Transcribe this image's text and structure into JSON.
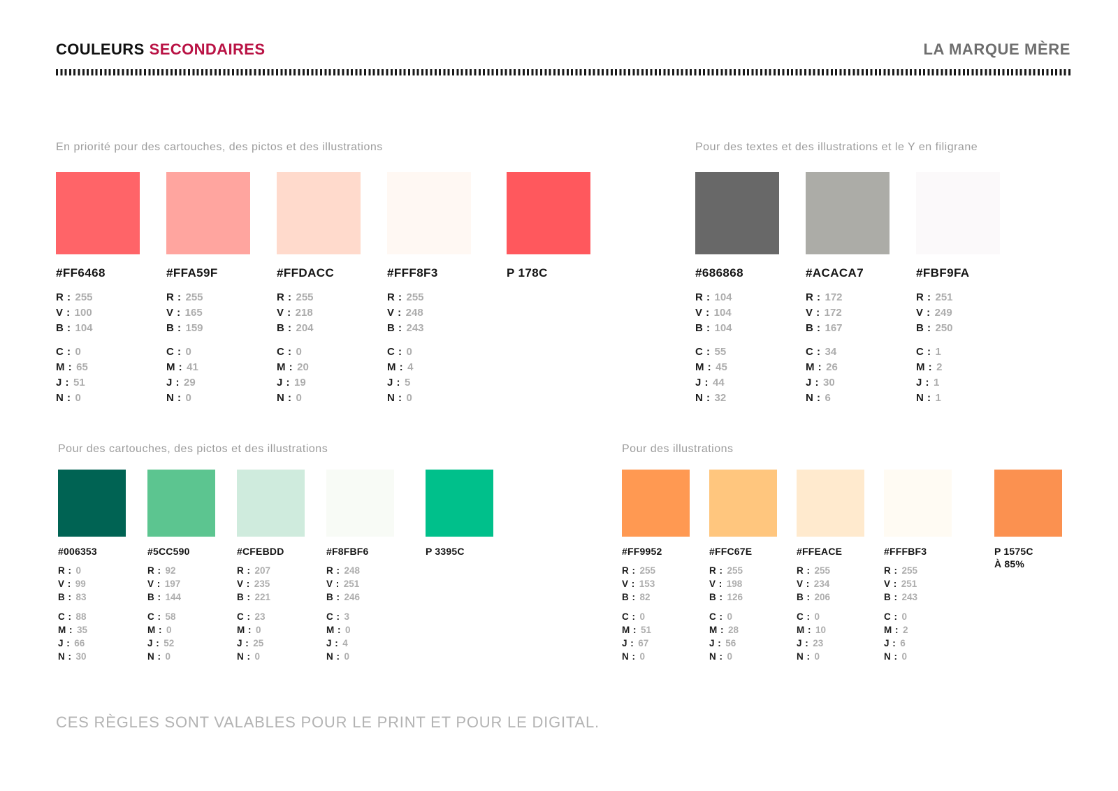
{
  "header": {
    "title_black": "COULEURS",
    "title_accent": "SECONDAIRES",
    "accent_color": "#B91244",
    "brand": "LA MARQUE MÈRE"
  },
  "labels": {
    "rgb": [
      "R :",
      "V :",
      "B :"
    ],
    "cmyk": [
      "C :",
      "M :",
      "J :",
      "N :"
    ]
  },
  "groups": [
    {
      "label": "En priorité pour des cartouches, des pictos et des illustrations",
      "swatches": [
        {
          "name": "#FF6468",
          "color": "#FF6468",
          "rgb": [
            255,
            100,
            104
          ],
          "cmyk": [
            0,
            65,
            51,
            0
          ]
        },
        {
          "name": "#FFA59F",
          "color": "#FFA59F",
          "rgb": [
            255,
            165,
            159
          ],
          "cmyk": [
            0,
            41,
            29,
            0
          ]
        },
        {
          "name": "#FFDACC",
          "color": "#FFDACC",
          "rgb": [
            255,
            218,
            204
          ],
          "cmyk": [
            0,
            20,
            19,
            0
          ]
        },
        {
          "name": "#FFF8F3",
          "color": "#FFF8F3",
          "rgb": [
            255,
            248,
            243
          ],
          "cmyk": [
            0,
            4,
            5,
            0
          ]
        },
        {
          "name": "P 178C",
          "color": "#FF585D"
        }
      ]
    },
    {
      "label": "Pour des textes et des illustrations et le Y en filigrane",
      "swatches": [
        {
          "name": "#686868",
          "color": "#686868",
          "rgb": [
            104,
            104,
            104
          ],
          "cmyk": [
            55,
            45,
            44,
            32
          ]
        },
        {
          "name": "#ACACA7",
          "color": "#ACACA7",
          "rgb": [
            172,
            172,
            167
          ],
          "cmyk": [
            34,
            26,
            30,
            6
          ]
        },
        {
          "name": "#FBF9FA",
          "color": "#FBF9FA",
          "rgb": [
            251,
            249,
            250
          ],
          "cmyk": [
            1,
            2,
            1,
            1
          ]
        }
      ]
    },
    {
      "label": "Pour des cartouches, des pictos et des illustrations",
      "swatches": [
        {
          "name": "#006353",
          "color": "#006353",
          "rgb": [
            0,
            99,
            83
          ],
          "cmyk": [
            88,
            35,
            66,
            30
          ]
        },
        {
          "name": "#5CC590",
          "color": "#5CC590",
          "rgb": [
            92,
            197,
            144
          ],
          "cmyk": [
            58,
            0,
            52,
            0
          ]
        },
        {
          "name": "#CFEBDD",
          "color": "#CFEBDD",
          "rgb": [
            207,
            235,
            221
          ],
          "cmyk": [
            23,
            0,
            25,
            0
          ]
        },
        {
          "name": "#F8FBF6",
          "color": "#F8FBF6",
          "rgb": [
            248,
            251,
            246
          ],
          "cmyk": [
            3,
            0,
            4,
            0
          ]
        },
        {
          "name": "P 3395C",
          "color": "#00C08B"
        }
      ]
    },
    {
      "label": "Pour des illustrations",
      "swatches": [
        {
          "name": "#FF9952",
          "color": "#FF9952",
          "rgb": [
            255,
            153,
            82
          ],
          "cmyk": [
            0,
            51,
            67,
            0
          ]
        },
        {
          "name": "#FFC67E",
          "color": "#FFC67E",
          "rgb": [
            255,
            198,
            126
          ],
          "cmyk": [
            0,
            28,
            56,
            0
          ]
        },
        {
          "name": "#FFEACE",
          "color": "#FFEACE",
          "rgb": [
            255,
            234,
            206
          ],
          "cmyk": [
            0,
            10,
            23,
            0
          ]
        },
        {
          "name": "#FFFBF3",
          "color": "#FFFBF3",
          "rgb": [
            255,
            251,
            243
          ],
          "cmyk": [
            0,
            2,
            6,
            0
          ]
        },
        {
          "name": "P 1575C",
          "sub": "À 85%",
          "color": "#FB9150"
        }
      ]
    }
  ],
  "footer": "CES RÈGLES SONT VALABLES POUR LE PRINT ET POUR LE DIGITAL."
}
